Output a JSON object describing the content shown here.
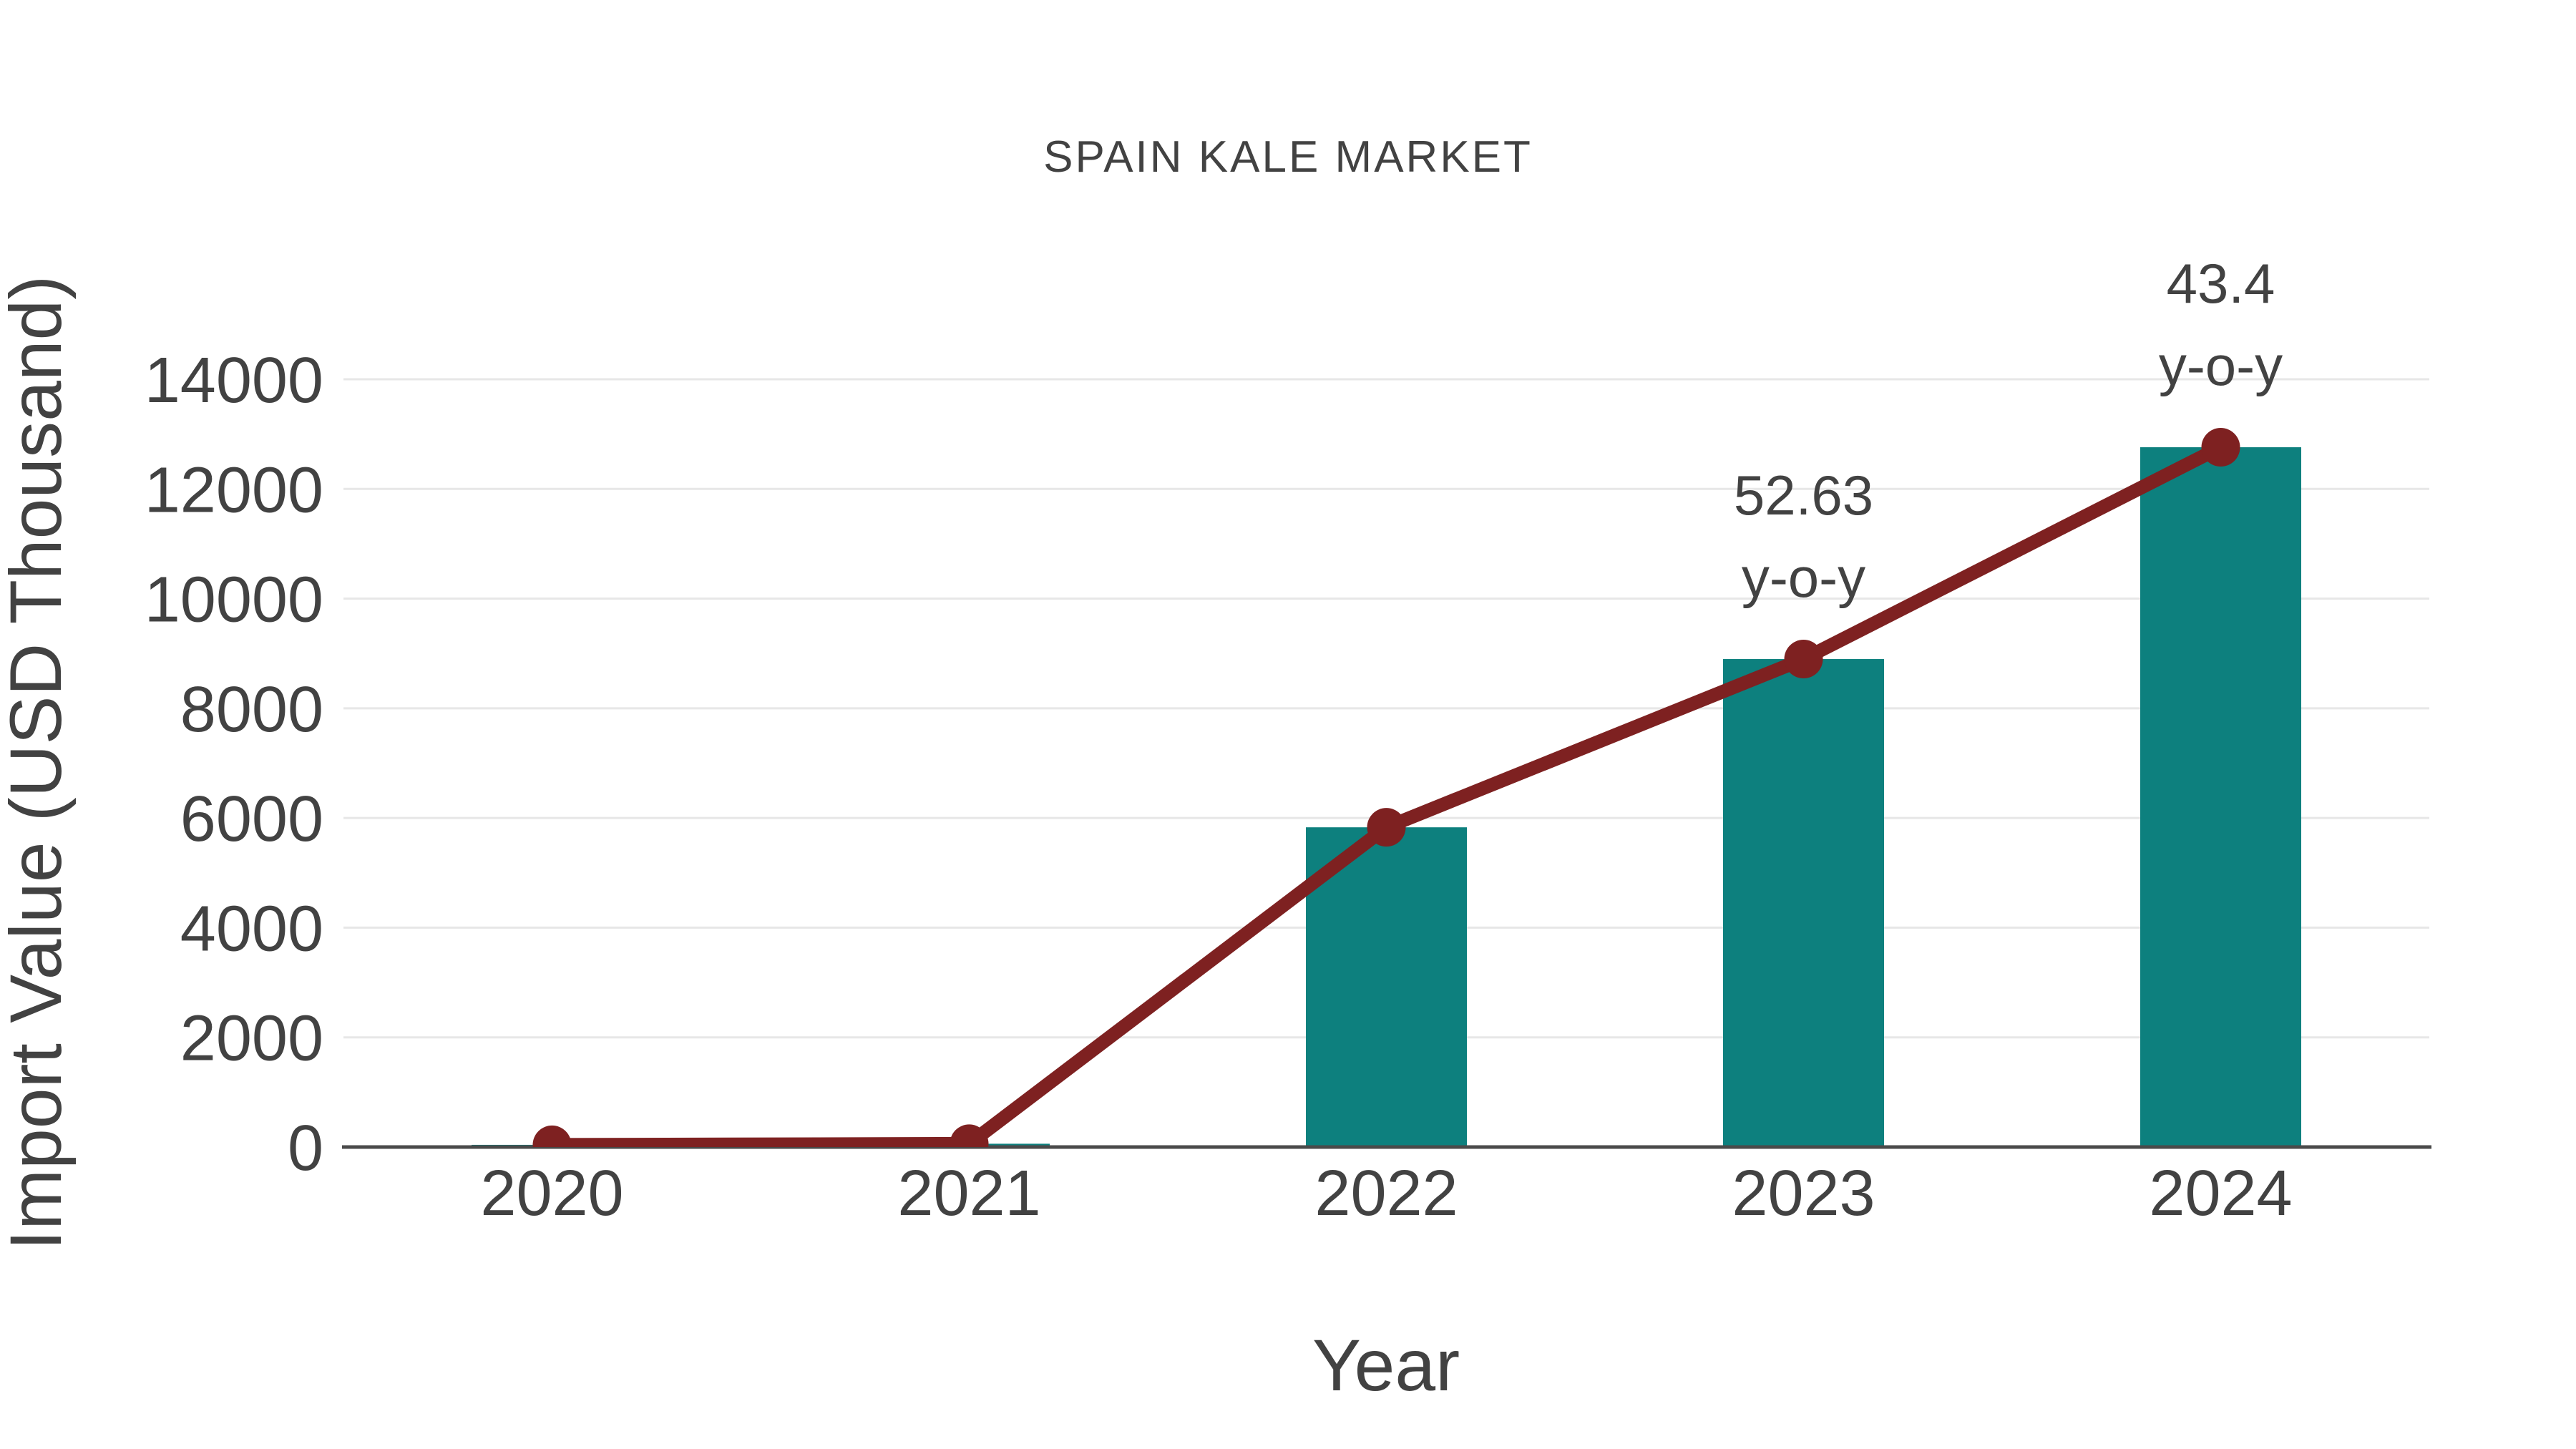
{
  "chart_data": {
    "type": "bar",
    "title": "SPAIN KALE MARKET",
    "xlabel": "Year",
    "ylabel": "Import Value (USD Thousand)",
    "categories": [
      "2020",
      "2021",
      "2022",
      "2023",
      "2024"
    ],
    "series": [
      {
        "name": "Import Value bars",
        "render": "bar",
        "color": "#0D807E",
        "values": [
          40,
          60,
          5830,
          8898,
          12760
        ]
      },
      {
        "name": "Import Value trend line",
        "render": "line",
        "color": "#7E2121",
        "values": [
          40,
          60,
          5830,
          8898,
          12760
        ]
      }
    ],
    "ylim": [
      0,
      14000
    ],
    "yticks": [
      0,
      2000,
      4000,
      6000,
      8000,
      10000,
      12000,
      14000
    ],
    "grid": true,
    "legend": false,
    "annotations": [
      {
        "category": "2023",
        "lines": [
          "52.63",
          "y-o-y"
        ]
      },
      {
        "category": "2024",
        "lines": [
          "43.4",
          "y-o-y"
        ]
      }
    ],
    "colors": {
      "bar": "#0D807E",
      "line": "#7E2121",
      "text": "#424242",
      "grid": "#E7E7E7",
      "axis": "#4A4A4A",
      "background": "#FFFFFF"
    }
  }
}
